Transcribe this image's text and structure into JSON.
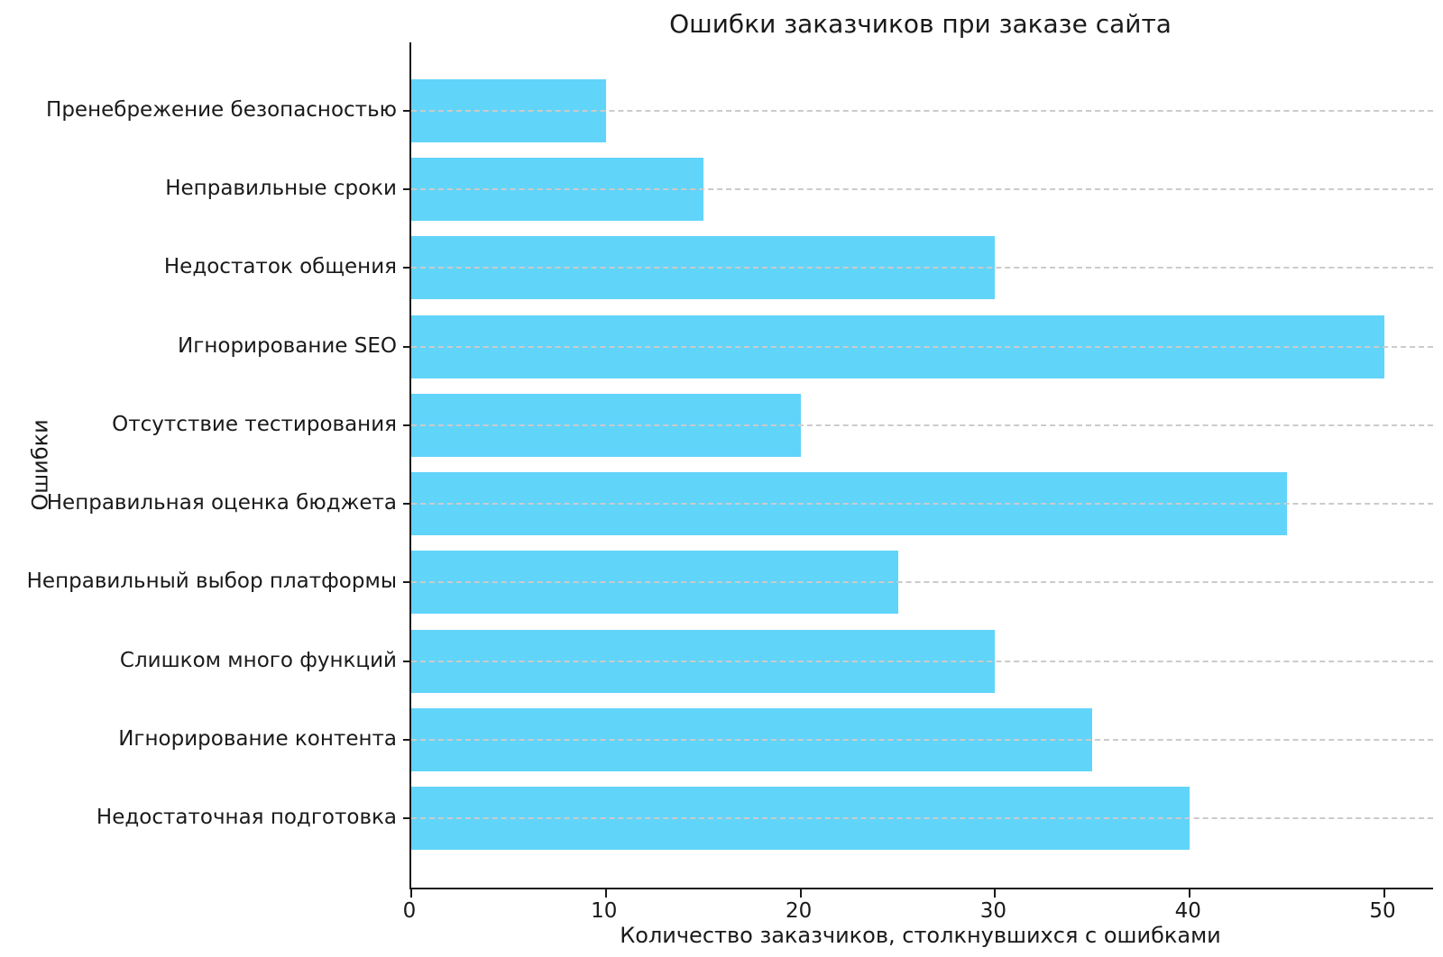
{
  "chart_data": {
    "type": "bar",
    "orientation": "horizontal",
    "title": "Ошибки заказчиков при заказе сайта",
    "xlabel": "Количество заказчиков, столкнувшихся с ошибками",
    "ylabel": "Ошибки",
    "categories_top_to_bottom": [
      "Пренебрежение безопасностью",
      "Неправильные сроки",
      "Недостаток общения",
      "Игнорирование SEO",
      "Отсутствие тестирования",
      "Неправильная оценка бюджета",
      "Неправильный выбор платформы",
      "Слишком много функций",
      "Игнорирование контента",
      "Недостаточная подготовка"
    ],
    "values": [
      10,
      15,
      30,
      50,
      20,
      45,
      25,
      30,
      35,
      40
    ],
    "x_ticks": [
      0,
      10,
      20,
      30,
      40,
      50
    ],
    "xlim": [
      0,
      52.5
    ],
    "bar_color": "#61d4f9",
    "grid": "horizontal-dashed",
    "grid_color": "#cbcbcb",
    "spine_color": "#1a1a1a",
    "background_color": "#ffffff",
    "legend": "none"
  }
}
